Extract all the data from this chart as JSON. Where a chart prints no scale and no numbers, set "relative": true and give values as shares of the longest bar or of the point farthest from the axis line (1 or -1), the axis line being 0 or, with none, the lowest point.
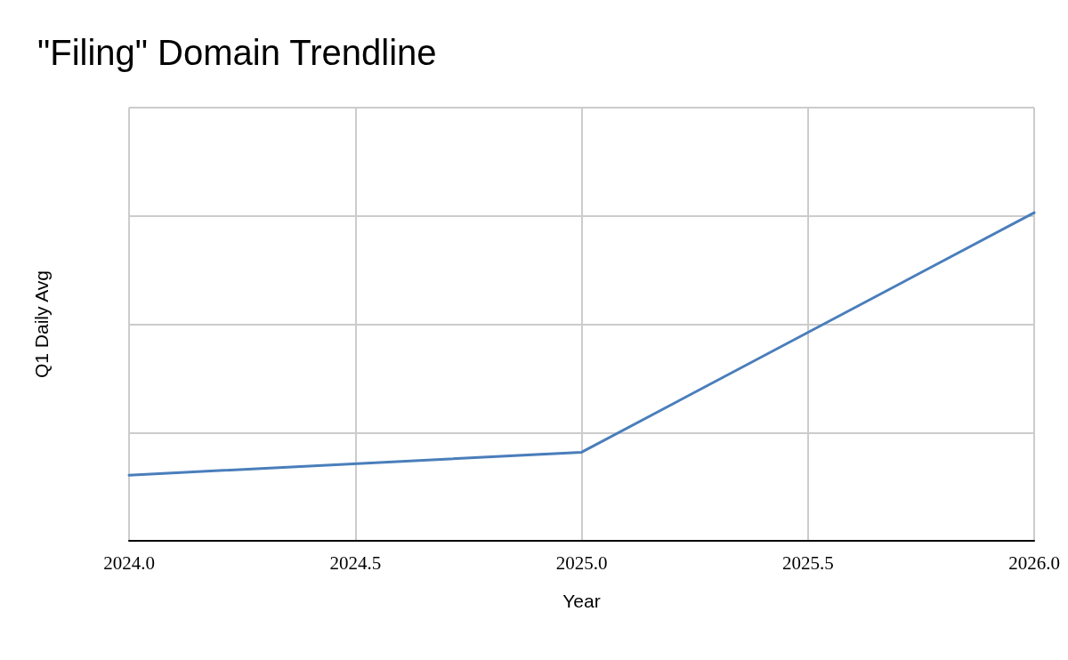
{
  "chart_data": {
    "type": "line",
    "title": "\"Filing\" Domain Trendline",
    "xlabel": "Year",
    "ylabel": "Q1 Daily Avg",
    "x": [
      2024,
      2025,
      2026
    ],
    "values": [
      0.2,
      0.27,
      1
    ],
    "color": "#4a7ebb",
    "relative": true,
    "xlim": [
      2024,
      2026
    ],
    "xticks": [
      {
        "value": 2024,
        "label": "2024.0"
      },
      {
        "value": 2024.5,
        "label": "2024.5"
      },
      {
        "value": 2025,
        "label": "2025.0"
      },
      {
        "value": 2025.5,
        "label": "2025.5"
      },
      {
        "value": 2026,
        "label": "2026.0"
      }
    ],
    "grid": true,
    "tick_labels": "x",
    "marker": "none",
    "line_style": "solid"
  }
}
